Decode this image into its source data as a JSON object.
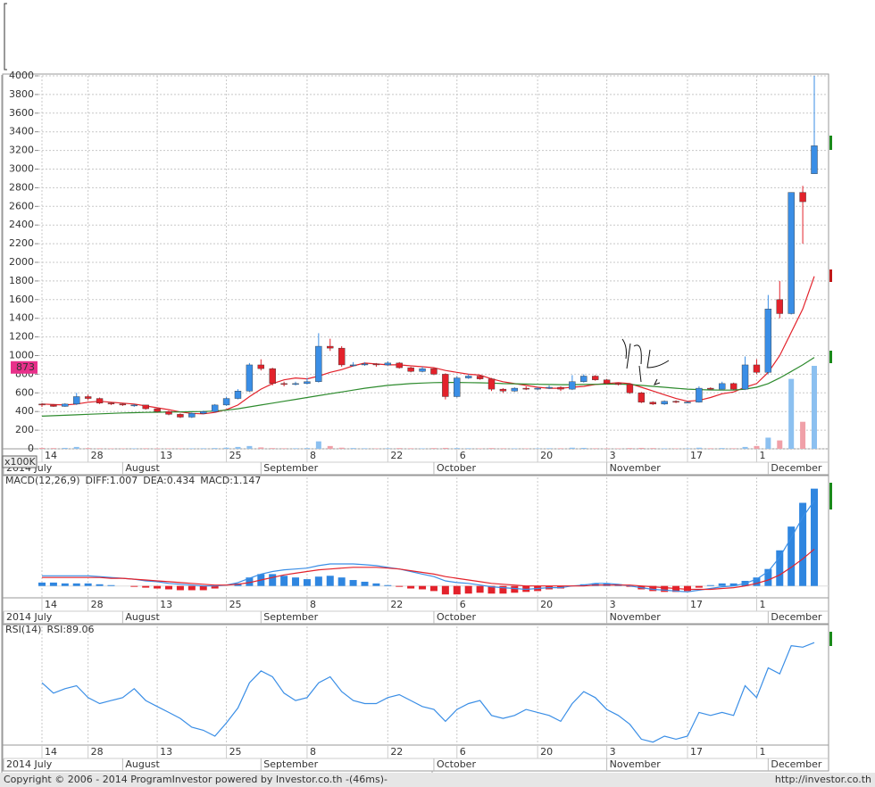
{
  "chart_data": [
    {
      "type": "candlestick",
      "categories": [
        "14",
        null,
        null,
        null,
        "28",
        null,
        null,
        null,
        null,
        null,
        "13",
        null,
        null,
        null,
        null,
        null,
        "25",
        null,
        null,
        null,
        null,
        null,
        null,
        "8",
        null,
        null,
        null,
        null,
        null,
        null,
        "22",
        null,
        null,
        null,
        null,
        null,
        "6",
        null,
        null,
        null,
        null,
        null,
        null,
        "20",
        null,
        null,
        null,
        null,
        null,
        "3",
        null,
        null,
        null,
        null,
        null,
        null,
        "17",
        null,
        null,
        null,
        null,
        null,
        "1",
        null,
        null,
        null,
        null,
        null
      ],
      "months": [
        "2014 July",
        null,
        null,
        null,
        null,
        null,
        null,
        "August",
        null,
        null,
        null,
        null,
        null,
        null,
        null,
        null,
        null,
        null,
        null,
        "September",
        null,
        null,
        null,
        null,
        null,
        null,
        null,
        null,
        null,
        null,
        null,
        null,
        null,
        null,
        "October",
        null,
        null,
        null,
        null,
        null,
        null,
        null,
        null,
        null,
        null,
        null,
        null,
        null,
        null,
        "November",
        null,
        null,
        null,
        null,
        null,
        null,
        null,
        null,
        null,
        null,
        null,
        null,
        null,
        "December",
        null,
        null,
        null,
        null
      ],
      "open": [
        480,
        470,
        455,
        480,
        560,
        540,
        490,
        480,
        470,
        470,
        430,
        400,
        370,
        340,
        380,
        400,
        470,
        540,
        620,
        900,
        860,
        700,
        690,
        700,
        720,
        1100,
        1080,
        900,
        900,
        910,
        900,
        920,
        870,
        830,
        860,
        800,
        560,
        760,
        780,
        750,
        640,
        620,
        650,
        640,
        650,
        660,
        640,
        720,
        780,
        740,
        700,
        690,
        600,
        500,
        480,
        510,
        500,
        500,
        650,
        640,
        700,
        640,
        900,
        820,
        1600,
        1450,
        2750,
        2950
      ],
      "high": [
        490,
        480,
        490,
        600,
        580,
        550,
        500,
        490,
        480,
        470,
        440,
        410,
        380,
        390,
        410,
        480,
        560,
        640,
        920,
        960,
        870,
        720,
        720,
        760,
        1240,
        1180,
        1100,
        930,
        930,
        920,
        940,
        930,
        880,
        880,
        870,
        810,
        780,
        800,
        790,
        760,
        650,
        660,
        670,
        660,
        680,
        670,
        790,
        800,
        790,
        750,
        710,
        700,
        610,
        510,
        520,
        520,
        510,
        670,
        660,
        720,
        710,
        990,
        960,
        1650,
        1800,
        2750,
        2820,
        4000
      ],
      "low": [
        450,
        450,
        450,
        470,
        520,
        480,
        470,
        460,
        450,
        420,
        390,
        360,
        330,
        330,
        370,
        390,
        460,
        530,
        610,
        840,
        680,
        670,
        680,
        690,
        710,
        1050,
        880,
        880,
        890,
        880,
        890,
        860,
        820,
        820,
        790,
        530,
        550,
        750,
        740,
        620,
        600,
        610,
        630,
        630,
        640,
        620,
        630,
        710,
        730,
        690,
        680,
        590,
        490,
        470,
        470,
        490,
        490,
        495,
        630,
        630,
        630,
        630,
        800,
        800,
        1400,
        1440,
        2200,
        2950
      ],
      "close": [
        470,
        455,
        480,
        560,
        540,
        490,
        480,
        470,
        470,
        430,
        400,
        370,
        340,
        380,
        400,
        470,
        540,
        620,
        900,
        860,
        700,
        690,
        700,
        720,
        1100,
        1080,
        900,
        900,
        910,
        900,
        920,
        870,
        830,
        860,
        800,
        560,
        760,
        780,
        750,
        640,
        620,
        650,
        640,
        650,
        660,
        640,
        720,
        780,
        740,
        700,
        690,
        600,
        500,
        480,
        510,
        500,
        500,
        650,
        640,
        700,
        640,
        900,
        820,
        1500,
        1450,
        2750,
        2650,
        3250
      ],
      "up_color": "#3a8ee6",
      "down_color": "#e3222b",
      "series": [
        {
          "color": "#e3222b",
          "values": [
            480,
            475,
            470,
            480,
            500,
            510,
            500,
            490,
            480,
            460,
            440,
            420,
            395,
            380,
            375,
            390,
            420,
            470,
            560,
            640,
            700,
            740,
            760,
            750,
            780,
            820,
            850,
            890,
            920,
            910,
            900,
            900,
            890,
            880,
            870,
            840,
            820,
            800,
            790,
            750,
            720,
            700,
            680,
            660,
            650,
            650,
            660,
            670,
            690,
            700,
            710,
            700,
            660,
            620,
            580,
            540,
            510,
            520,
            550,
            590,
            610,
            660,
            700,
            820,
            1000,
            1250,
            1500,
            1850
          ]
        },
        {
          "color": "#2e8b2e",
          "values": [
            350,
            355,
            360,
            365,
            370,
            375,
            380,
            385,
            388,
            390,
            392,
            394,
            396,
            398,
            400,
            405,
            415,
            430,
            450,
            470,
            490,
            510,
            530,
            550,
            570,
            590,
            610,
            630,
            650,
            665,
            680,
            690,
            700,
            705,
            710,
            712,
            712,
            710,
            708,
            705,
            700,
            698,
            695,
            692,
            690,
            688,
            688,
            690,
            692,
            694,
            695,
            690,
            680,
            670,
            660,
            650,
            640,
            635,
            632,
            630,
            630,
            640,
            660,
            700,
            760,
            830,
            900,
            980
          ]
        }
      ],
      "volume": {
        "label": "x100K",
        "up_color": "#8cc0f0",
        "down_color": "#f0a0a8",
        "values": [
          10,
          8,
          10,
          20,
          8,
          6,
          5,
          5,
          5,
          6,
          5,
          5,
          5,
          5,
          6,
          8,
          12,
          20,
          30,
          15,
          8,
          6,
          6,
          8,
          80,
          30,
          12,
          8,
          6,
          5,
          6,
          8,
          6,
          5,
          8,
          10,
          8,
          6,
          5,
          8,
          6,
          5,
          5,
          5,
          6,
          6,
          12,
          10,
          6,
          5,
          5,
          8,
          10,
          8,
          5,
          5,
          5,
          12,
          6,
          8,
          6,
          20,
          30,
          120,
          90,
          750,
          290,
          890
        ]
      },
      "price_marker": 873,
      "marker_color": "#e8308a",
      "ylim": [
        0,
        4000
      ],
      "yticks": [
        0,
        200,
        400,
        600,
        800,
        1000,
        1200,
        1400,
        1600,
        1800,
        2000,
        2200,
        2400,
        2600,
        2800,
        3000,
        3200,
        3400,
        3600,
        3800,
        4000
      ],
      "grid": true
    },
    {
      "type": "macd",
      "title": "MACD(12,26,9)",
      "title_color": "#1e6fc8",
      "categories": [
        "14",
        null,
        null,
        null,
        "28",
        null,
        null,
        null,
        null,
        null,
        "13",
        null,
        null,
        null,
        null,
        null,
        "25",
        null,
        null,
        null,
        null,
        null,
        null,
        "8",
        null,
        null,
        null,
        null,
        null,
        null,
        "22",
        null,
        null,
        null,
        null,
        null,
        "6",
        null,
        null,
        null,
        null,
        null,
        null,
        "20",
        null,
        null,
        null,
        null,
        null,
        "3",
        null,
        null,
        null,
        null,
        null,
        null,
        "17",
        null,
        null,
        null,
        null,
        null,
        "1",
        null,
        null,
        null,
        null,
        null
      ],
      "months": [
        "2014 July",
        null,
        null,
        null,
        null,
        null,
        null,
        "August",
        null,
        null,
        null,
        null,
        null,
        null,
        null,
        null,
        null,
        null,
        null,
        "September",
        null,
        null,
        null,
        null,
        null,
        null,
        null,
        null,
        null,
        null,
        null,
        null,
        null,
        null,
        "October",
        null,
        null,
        null,
        null,
        null,
        null,
        null,
        null,
        null,
        null,
        null,
        null,
        null,
        null,
        "November",
        null,
        null,
        null,
        null,
        null,
        null,
        null,
        null,
        null,
        null,
        null,
        null,
        null,
        "December",
        null,
        null,
        null,
        null
      ],
      "series": [
        {
          "name": "DIFF:1.007",
          "color": "#3a8ee6",
          "values": [
            0.12,
            0.12,
            0.12,
            0.12,
            0.12,
            0.11,
            0.1,
            0.09,
            0.08,
            0.06,
            0.05,
            0.03,
            0.02,
            0.01,
            0,
            0,
            0.01,
            0.04,
            0.09,
            0.14,
            0.17,
            0.19,
            0.2,
            0.21,
            0.24,
            0.26,
            0.26,
            0.26,
            0.25,
            0.24,
            0.22,
            0.2,
            0.17,
            0.14,
            0.11,
            0.06,
            0.04,
            0.03,
            0.01,
            -0.01,
            -0.02,
            -0.03,
            -0.04,
            -0.03,
            -0.02,
            -0.02,
            0,
            0.01,
            0.03,
            0.03,
            0.02,
            0,
            -0.02,
            -0.04,
            -0.05,
            -0.06,
            -0.07,
            -0.05,
            -0.03,
            -0.01,
            0,
            0.03,
            0.08,
            0.17,
            0.34,
            0.57,
            0.81,
            1.007
          ]
        },
        {
          "name": "DEA:0.434",
          "color": "#e3222b",
          "values": [
            0.1,
            0.1,
            0.1,
            0.1,
            0.1,
            0.1,
            0.09,
            0.09,
            0.08,
            0.07,
            0.06,
            0.05,
            0.04,
            0.03,
            0.02,
            0.01,
            0.01,
            0.02,
            0.04,
            0.07,
            0.1,
            0.13,
            0.15,
            0.17,
            0.19,
            0.2,
            0.21,
            0.22,
            0.22,
            0.22,
            0.21,
            0.2,
            0.18,
            0.16,
            0.14,
            0.11,
            0.09,
            0.07,
            0.05,
            0.03,
            0.02,
            0.01,
            0,
            0,
            0,
            0,
            0,
            0,
            0.01,
            0.01,
            0.01,
            0.01,
            0,
            -0.01,
            -0.02,
            -0.03,
            -0.04,
            -0.04,
            -0.04,
            -0.03,
            -0.02,
            0,
            0.03,
            0.07,
            0.13,
            0.22,
            0.32,
            0.434
          ]
        }
      ],
      "histogram": {
        "name": "MACD:1.147",
        "color": "#1a8a1a",
        "up_color": "#2f86e0",
        "down_color": "#e3222b",
        "values": [
          0.04,
          0.04,
          0.03,
          0.03,
          0.03,
          0.02,
          0.01,
          0,
          -0.01,
          -0.02,
          -0.03,
          -0.04,
          -0.05,
          -0.05,
          -0.05,
          -0.03,
          0,
          0.03,
          0.1,
          0.14,
          0.14,
          0.12,
          0.1,
          0.08,
          0.11,
          0.12,
          0.1,
          0.07,
          0.05,
          0.03,
          0.01,
          -0.01,
          -0.03,
          -0.04,
          -0.06,
          -0.1,
          -0.1,
          -0.09,
          -0.08,
          -0.09,
          -0.09,
          -0.08,
          -0.07,
          -0.06,
          -0.04,
          -0.03,
          0,
          0.02,
          0.03,
          0.03,
          0.02,
          -0.01,
          -0.04,
          -0.06,
          -0.07,
          -0.07,
          -0.06,
          -0.02,
          0.01,
          0.03,
          0.03,
          0.06,
          0.1,
          0.2,
          0.42,
          0.7,
          0.98,
          1.147
        ]
      },
      "ylim": [
        -0.14,
        1.28
      ]
    },
    {
      "type": "rsi",
      "title": "RSI(14)",
      "title_color": "#1e6fc8",
      "categories": [
        "14",
        null,
        null,
        null,
        "28",
        null,
        null,
        null,
        null,
        null,
        "13",
        null,
        null,
        null,
        null,
        null,
        "25",
        null,
        null,
        null,
        null,
        null,
        null,
        "8",
        null,
        null,
        null,
        null,
        null,
        null,
        "22",
        null,
        null,
        null,
        null,
        null,
        "6",
        null,
        null,
        null,
        null,
        null,
        null,
        "20",
        null,
        null,
        null,
        null,
        null,
        "3",
        null,
        null,
        null,
        null,
        null,
        null,
        "17",
        null,
        null,
        null,
        null,
        null,
        "1",
        null,
        null,
        null,
        null,
        null
      ],
      "months": [
        "2014 July",
        null,
        null,
        null,
        null,
        null,
        null,
        "August",
        null,
        null,
        null,
        null,
        null,
        null,
        null,
        null,
        null,
        null,
        null,
        "September",
        null,
        null,
        null,
        null,
        null,
        null,
        null,
        null,
        null,
        null,
        null,
        null,
        null,
        null,
        "October",
        null,
        null,
        null,
        null,
        null,
        null,
        null,
        null,
        null,
        null,
        null,
        null,
        null,
        null,
        "November",
        null,
        null,
        null,
        null,
        null,
        null,
        null,
        null,
        null,
        null,
        null,
        null,
        null,
        "December",
        null,
        null,
        null,
        null
      ],
      "series": [
        {
          "name": "RSI:89.06",
          "color": "#3a8ee6",
          "values": [
            62,
            55,
            58,
            60,
            52,
            48,
            50,
            52,
            58,
            50,
            46,
            42,
            38,
            32,
            30,
            26,
            35,
            45,
            62,
            70,
            66,
            55,
            50,
            52,
            62,
            66,
            56,
            50,
            48,
            48,
            52,
            54,
            50,
            46,
            44,
            36,
            44,
            48,
            50,
            40,
            38,
            40,
            44,
            42,
            40,
            36,
            48,
            56,
            52,
            44,
            40,
            34,
            24,
            22,
            26,
            24,
            26,
            42,
            40,
            42,
            40,
            60,
            52,
            72,
            68,
            87,
            86,
            89.06
          ]
        }
      ],
      "ylim": [
        20,
        100
      ]
    }
  ],
  "footer": {
    "left": "Copyright © 2006 - 2014 ProgramInvestor powered by Investor.co.th -(46ms)-",
    "right": "http://investor.co.th"
  }
}
